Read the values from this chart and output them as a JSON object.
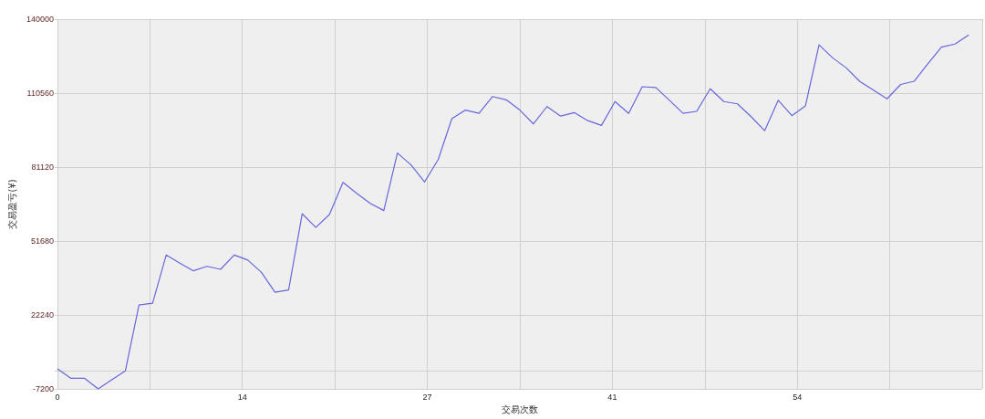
{
  "chart_data": {
    "type": "line",
    "xlabel": "交易次数",
    "ylabel": "交易盈亏(¥)",
    "x": [
      0,
      1,
      2,
      3,
      4,
      5,
      6,
      7,
      8,
      9,
      10,
      11,
      12,
      13,
      14,
      15,
      16,
      17,
      18,
      19,
      20,
      21,
      22,
      23,
      24,
      25,
      26,
      27,
      28,
      29,
      30,
      31,
      32,
      33,
      34,
      35,
      36,
      37,
      38,
      39,
      40,
      41,
      42,
      43,
      44,
      45,
      46,
      47,
      48,
      49,
      50,
      51,
      52,
      53,
      54,
      55,
      56,
      57,
      58,
      59,
      60,
      61,
      62,
      63,
      64,
      65,
      66,
      67
    ],
    "series": [
      {
        "color": "#6666dd",
        "values": [
          800,
          -3000,
          -3000,
          -7200,
          -3600,
          0,
          26200,
          26900,
          46100,
          42900,
          39800,
          41600,
          40400,
          46100,
          44100,
          39200,
          31300,
          32200,
          62500,
          57100,
          62200,
          75000,
          70700,
          66700,
          63800,
          86700,
          82000,
          75200,
          84100,
          100400,
          103800,
          102500,
          109200,
          107900,
          103800,
          98300,
          105200,
          101400,
          102800,
          99600,
          97700,
          107200,
          102500,
          113100,
          112800,
          107700,
          102500,
          103300,
          112300,
          107200,
          106300,
          101200,
          95600,
          107700,
          101600,
          105500,
          129800,
          124600,
          120600,
          115200,
          111700,
          108300,
          114000,
          115300,
          122200,
          128900,
          130100,
          133700
        ]
      }
    ],
    "xlim": [
      0,
      68
    ],
    "xticks": [
      0,
      {
        "value": 6.8,
        "label": null
      },
      {
        "value": 13.6,
        "label": "14"
      },
      {
        "value": 20.4,
        "label": null
      },
      {
        "value": 27.2,
        "label": "27"
      },
      {
        "value": 34,
        "label": null
      },
      {
        "value": 40.8,
        "label": "41"
      },
      {
        "value": 47.6,
        "label": null
      },
      {
        "value": 54.4,
        "label": "54"
      },
      {
        "value": 61.2,
        "label": null
      },
      {
        "value": 68,
        "label": null
      }
    ],
    "ylim": [
      -7200,
      140000
    ],
    "yticks": [
      -7200,
      {
        "value": 0,
        "label": null
      },
      22240,
      51680,
      81120,
      110560,
      140000
    ],
    "grid": true,
    "marker": "none",
    "line_style": "solid"
  }
}
